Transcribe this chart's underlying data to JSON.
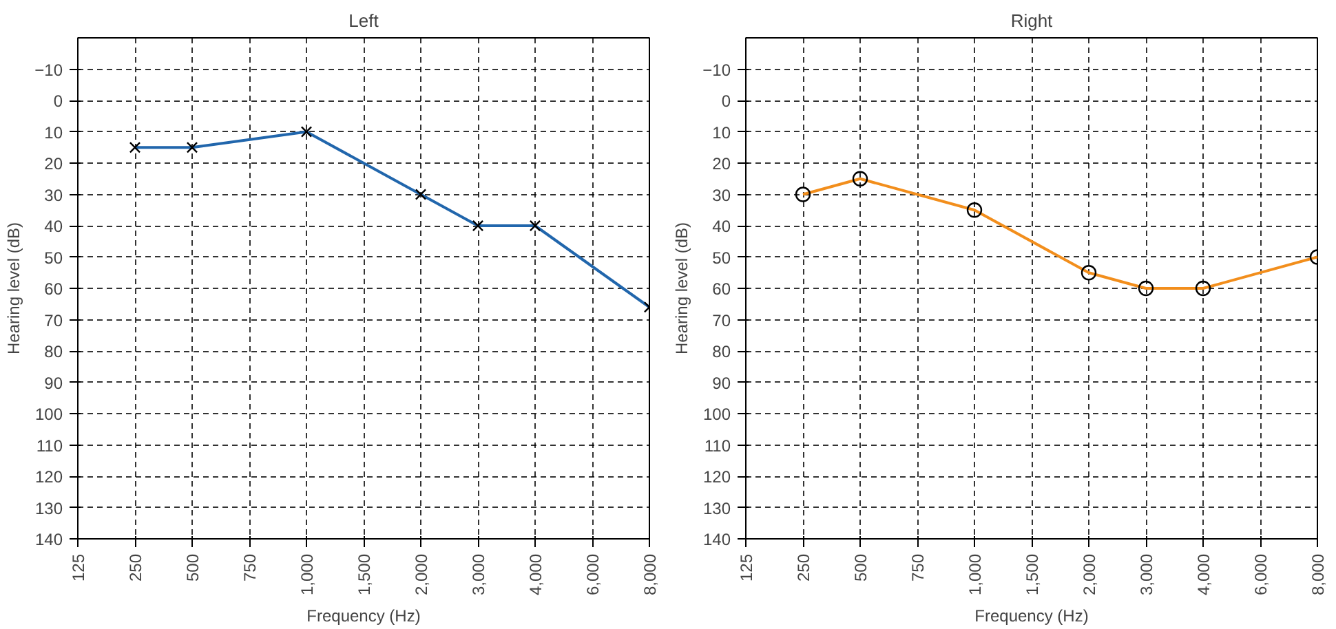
{
  "chart_data": [
    {
      "type": "line",
      "title": "Left",
      "xlabel": "Frequency (Hz)",
      "ylabel": "Hearing level (dB)",
      "categories": [
        "125",
        "250",
        "500",
        "750",
        "1,000",
        "1,500",
        "2,000",
        "3,000",
        "4,000",
        "6,000",
        "8,000"
      ],
      "series": [
        {
          "color": "#2166ac",
          "x": [
            "250",
            "500",
            "1,000",
            "2,000",
            "3,000",
            "4,000",
            "8,000"
          ],
          "values": [
            15,
            15,
            10,
            30,
            40,
            40,
            66
          ]
        }
      ],
      "ylim": [
        140,
        -20
      ],
      "yticks": [
        {
          "value": -10,
          "label": "−10"
        },
        0,
        10,
        20,
        30,
        40,
        50,
        60,
        70,
        80,
        90,
        100,
        110,
        120,
        130,
        140
      ],
      "grid": true,
      "marker": "cross",
      "line_style": "solid"
    },
    {
      "type": "line",
      "title": "Right",
      "xlabel": "Frequency (Hz)",
      "ylabel": "Hearing level (dB)",
      "categories": [
        "125",
        "250",
        "500",
        "750",
        "1,000",
        "1,500",
        "2,000",
        "3,000",
        "4,000",
        "6,000",
        "8,000"
      ],
      "series": [
        {
          "color": "#f28e1c",
          "x": [
            "250",
            "500",
            "1,000",
            "2,000",
            "3,000",
            "4,000",
            "8,000"
          ],
          "values": [
            30,
            25,
            35,
            55,
            60,
            60,
            50
          ]
        }
      ],
      "ylim": [
        140,
        -20
      ],
      "yticks": [
        {
          "value": -10,
          "label": "−10"
        },
        0,
        10,
        20,
        30,
        40,
        50,
        60,
        70,
        80,
        90,
        100,
        110,
        120,
        130,
        140
      ],
      "grid": true,
      "marker": "circle",
      "line_style": "solid"
    }
  ]
}
